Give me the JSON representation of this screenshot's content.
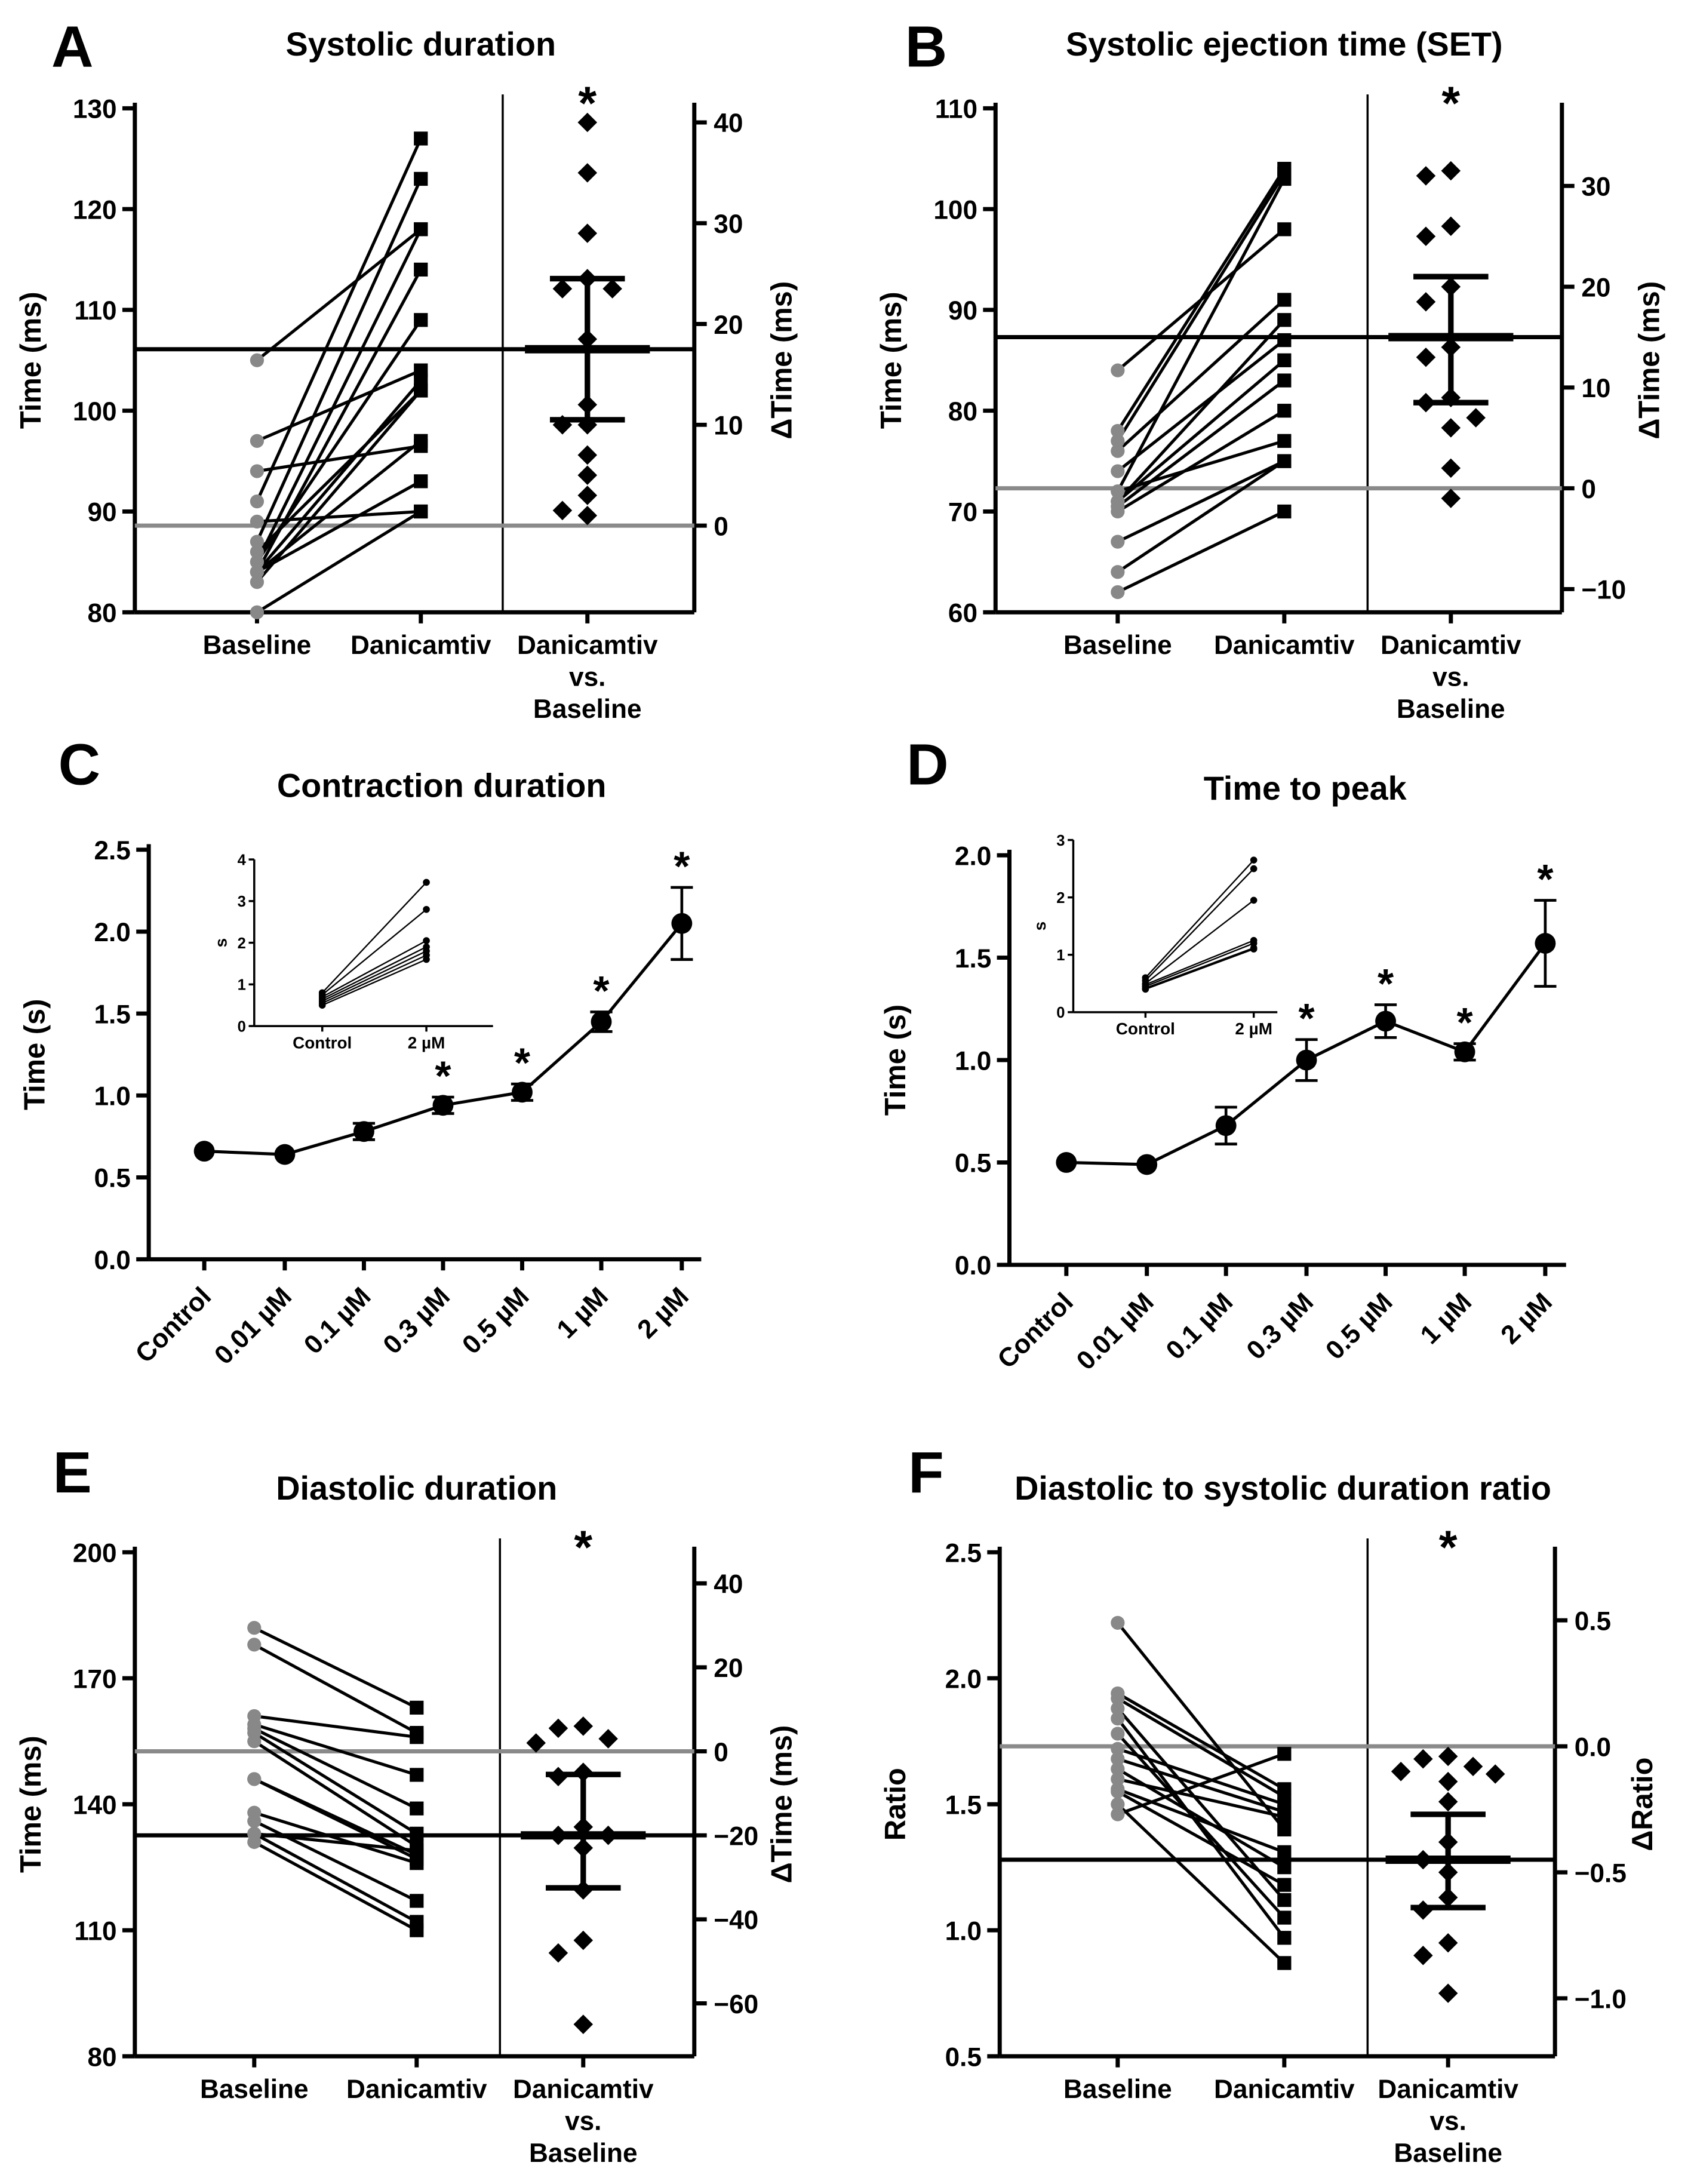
{
  "colors": {
    "baseline_points": "#888888",
    "zero_line": "#8a8a8a",
    "marks": "#000000"
  },
  "chart_data": [
    {
      "panel": "A",
      "type": "scatter",
      "title": "Systolic duration",
      "ylabel": "Time (ms)",
      "ylabel_right": "ΔTime (ms)",
      "ylim": [
        80,
        130
      ],
      "yticks": [
        "80",
        "90",
        "100",
        "110",
        "120",
        "130"
      ],
      "yticks_right": [
        "0",
        "10",
        "20",
        "30",
        "40"
      ],
      "right_zero_at": 88.6,
      "categories": [
        [
          "Baseline"
        ],
        [
          "Danicamtiv"
        ],
        [
          "Danicamtiv",
          "vs.",
          "Baseline"
        ]
      ],
      "pairs": [
        [
          105,
          118
        ],
        [
          97,
          104
        ],
        [
          94,
          96.5
        ],
        [
          91,
          127
        ],
        [
          89,
          90
        ],
        [
          87,
          123
        ],
        [
          85,
          118
        ],
        [
          84,
          114
        ],
        [
          84,
          103
        ],
        [
          85,
          109
        ],
        [
          83,
          102
        ],
        [
          84,
          97
        ],
        [
          84,
          93
        ],
        [
          80,
          90
        ],
        [
          86,
          102
        ]
      ],
      "delta": [
        40,
        35,
        29,
        24.5,
        23.5,
        23.5,
        18.5,
        10,
        10,
        7,
        5,
        3,
        1.5,
        1,
        12
      ],
      "delta_mean": 17.5,
      "delta_sem": [
        10.5,
        24.5
      ],
      "significance": "*"
    },
    {
      "panel": "B",
      "type": "scatter",
      "title": "Systolic ejection time (SET)",
      "ylabel": "Time (ms)",
      "ylabel_right": "ΔTime (ms)",
      "ylim": [
        60,
        110
      ],
      "yticks": [
        "60",
        "70",
        "80",
        "90",
        "100",
        "110"
      ],
      "yticks_right": [
        "−10",
        "0",
        "10",
        "20",
        "30"
      ],
      "right_zero_at": 72.3,
      "categories": [
        [
          "Baseline"
        ],
        [
          "Danicamtiv"
        ],
        [
          "Danicamtiv",
          "vs.",
          "Baseline"
        ]
      ],
      "pairs": [
        [
          84,
          98
        ],
        [
          78,
          104
        ],
        [
          77,
          103.5
        ],
        [
          76,
          91
        ],
        [
          74,
          87
        ],
        [
          72,
          103
        ],
        [
          71,
          89
        ],
        [
          71,
          85
        ],
        [
          70.5,
          83
        ],
        [
          70,
          80
        ],
        [
          72,
          77
        ],
        [
          67,
          75
        ],
        [
          64,
          75
        ],
        [
          62,
          70
        ]
      ],
      "delta": [
        31.5,
        31,
        26,
        25,
        20,
        18.5,
        14,
        13,
        9,
        8.5,
        6,
        7,
        2,
        -1
      ],
      "delta_mean": 15,
      "delta_sem": [
        8.5,
        21
      ],
      "significance": "*"
    },
    {
      "panel": "C",
      "type": "line",
      "title": "Contraction duration",
      "ylabel": "Time (s)",
      "ylim": [
        0,
        2.5
      ],
      "yticks": [
        "0.0",
        "0.5",
        "1.0",
        "1.5",
        "2.0",
        "2.5"
      ],
      "categories": [
        "Control",
        "0.01 µM",
        "0.1 µM",
        "0.3 µM",
        "0.5 µM",
        "1 µM",
        "2 µM"
      ],
      "values": [
        0.66,
        0.64,
        0.78,
        0.94,
        1.02,
        1.45,
        2.05
      ],
      "errors": [
        0.01,
        0.01,
        0.05,
        0.05,
        0.05,
        0.06,
        0.22
      ],
      "significant": [
        false,
        false,
        false,
        true,
        true,
        true,
        true
      ],
      "inset": {
        "ylabel": "s",
        "ylim": [
          0,
          4
        ],
        "yticks": [
          "0",
          "1",
          "2",
          "3",
          "4"
        ],
        "categories": [
          "Control",
          "2 µM"
        ],
        "pairs": [
          [
            0.8,
            3.45
          ],
          [
            0.75,
            2.8
          ],
          [
            0.7,
            2.05
          ],
          [
            0.65,
            1.9
          ],
          [
            0.6,
            1.8
          ],
          [
            0.55,
            1.7
          ],
          [
            0.5,
            1.6
          ]
        ]
      }
    },
    {
      "panel": "D",
      "type": "line",
      "title": "Time to peak",
      "ylabel": "Time (s)",
      "ylim": [
        0,
        2.0
      ],
      "yticks": [
        "0.0",
        "0.5",
        "1.0",
        "1.5",
        "2.0"
      ],
      "categories": [
        "Control",
        "0.01 µM",
        "0.1 µM",
        "0.3 µM",
        "0.5 µM",
        "1 µM",
        "2 µM"
      ],
      "values": [
        0.5,
        0.49,
        0.68,
        1.0,
        1.19,
        1.04,
        1.57
      ],
      "errors": [
        0.01,
        0.01,
        0.09,
        0.1,
        0.08,
        0.04,
        0.21
      ],
      "significant": [
        false,
        false,
        false,
        true,
        true,
        true,
        true
      ],
      "inset": {
        "ylabel": "s",
        "ylim": [
          0,
          3
        ],
        "yticks": [
          "0",
          "1",
          "2",
          "3"
        ],
        "categories": [
          "Control",
          "2 µM"
        ],
        "pairs": [
          [
            0.6,
            2.65
          ],
          [
            0.55,
            2.5
          ],
          [
            0.5,
            1.95
          ],
          [
            0.48,
            1.25
          ],
          [
            0.45,
            1.2
          ],
          [
            0.42,
            1.12
          ],
          [
            0.4,
            1.1
          ]
        ]
      }
    },
    {
      "panel": "E",
      "type": "scatter",
      "title": "Diastolic duration",
      "ylabel": "Time (ms)",
      "ylabel_right": "ΔTime (ms)",
      "ylim": [
        80,
        200
      ],
      "yticks": [
        "80",
        "110",
        "140",
        "170",
        "200"
      ],
      "yticks_right": [
        "−60",
        "−40",
        "−20",
        "0",
        "20",
        "40"
      ],
      "right_zero_at": 152.6,
      "categories": [
        [
          "Baseline"
        ],
        [
          "Danicamtiv"
        ],
        [
          "Danicamtiv",
          "vs.",
          "Baseline"
        ]
      ],
      "pairs": [
        [
          182,
          163
        ],
        [
          178,
          157
        ],
        [
          161,
          156
        ],
        [
          159,
          147
        ],
        [
          158,
          139
        ],
        [
          157,
          133
        ],
        [
          155,
          130
        ],
        [
          146,
          128
        ],
        [
          146,
          127
        ],
        [
          138,
          126
        ],
        [
          136,
          117
        ],
        [
          133,
          112
        ],
        [
          131,
          110
        ],
        [
          133,
          129
        ]
      ],
      "delta": [
        6,
        5.5,
        3,
        2,
        -5,
        -6,
        -18,
        -20,
        -23,
        -33,
        -45,
        -48,
        -65,
        -20
      ],
      "delta_mean": -20,
      "delta_sem": [
        -32.5,
        -5.5
      ],
      "significance": "*"
    },
    {
      "panel": "F",
      "type": "scatter",
      "title": "Diastolic to systolic duration ratio",
      "ylabel": "Ratio",
      "ylabel_right": "ΔRatio",
      "ylim": [
        0.5,
        2.5
      ],
      "yticks": [
        "0.5",
        "1.0",
        "1.5",
        "2.0",
        "2.5"
      ],
      "yticks_right": [
        "−1.0",
        "−0.5",
        "0.0",
        "0.5"
      ],
      "right_zero_at": 1.73,
      "categories": [
        [
          "Baseline"
        ],
        [
          "Danicamtiv"
        ],
        [
          "Danicamtiv",
          "vs.",
          "Baseline"
        ]
      ],
      "pairs": [
        [
          2.22,
          1.4
        ],
        [
          1.94,
          1.56
        ],
        [
          1.92,
          1.53
        ],
        [
          1.88,
          1.12
        ],
        [
          1.84,
          0.97
        ],
        [
          1.78,
          1.05
        ],
        [
          1.72,
          1.5
        ],
        [
          1.68,
          1.47
        ],
        [
          1.64,
          1.25
        ],
        [
          1.6,
          1.45
        ],
        [
          1.56,
          1.31
        ],
        [
          1.55,
          1.18
        ],
        [
          1.5,
          0.87
        ],
        [
          1.46,
          1.7
        ]
      ],
      "delta": [
        -0.04,
        -0.05,
        -0.08,
        -0.1,
        -0.11,
        -0.14,
        -0.22,
        -0.38,
        -0.45,
        -0.5,
        -0.6,
        -0.65,
        -0.78,
        -0.83,
        -0.98
      ],
      "delta_mean": -0.45,
      "delta_sem": [
        -0.64,
        -0.27
      ],
      "significance": "*"
    }
  ]
}
